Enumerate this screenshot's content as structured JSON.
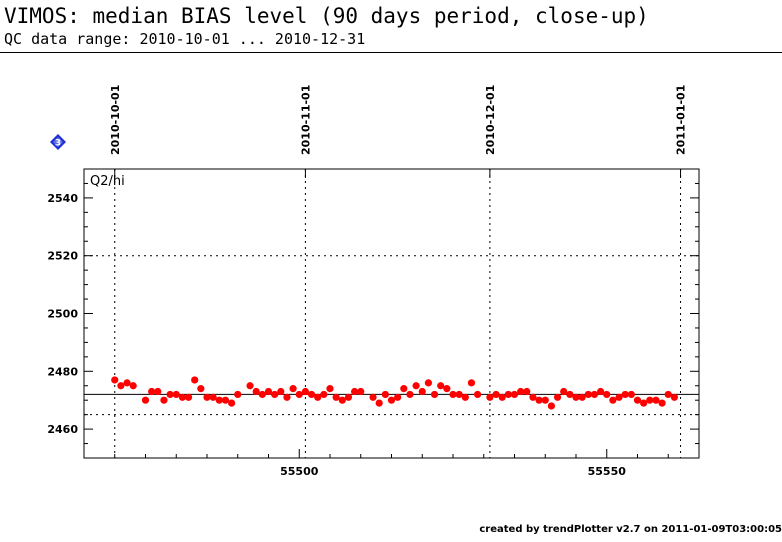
{
  "header": {
    "title": "VIMOS: median BIAS level (90 days period, close-up)",
    "subtitle": "QC data range: 2010-10-01 ... 2010-12-31"
  },
  "badge": {
    "icon": "diamond-3-icon",
    "label": "3",
    "color": "#1f2fd6"
  },
  "footer": {
    "text": "created by trendPlotter v2.7 on 2011-01-09T03:00:05"
  },
  "chart_data": {
    "type": "scatter",
    "panel_label": "Q2/hi",
    "xlim": [
      55465,
      55565
    ],
    "ylim": [
      2450,
      2550
    ],
    "x_ticks": [
      55500,
      55550
    ],
    "y_ticks": [
      2460,
      2480,
      2500,
      2520,
      2540
    ],
    "y_grid": [
      2465,
      2520
    ],
    "reference_line": 2472,
    "date_ticks": [
      {
        "label": "2010-10-01",
        "x": 55470
      },
      {
        "label": "2010-11-01",
        "x": 55501
      },
      {
        "label": "2010-12-01",
        "x": 55531
      },
      {
        "label": "2011-01-01",
        "x": 55562
      }
    ],
    "point_color": "#ff0000",
    "x": [
      55470,
      55471,
      55472,
      55473,
      55475,
      55476,
      55477,
      55478,
      55479,
      55480,
      55481,
      55482,
      55483,
      55484,
      55485,
      55486,
      55487,
      55488,
      55489,
      55490,
      55492,
      55493,
      55494,
      55495,
      55496,
      55497,
      55498,
      55499,
      55500,
      55501,
      55502,
      55503,
      55504,
      55505,
      55506,
      55507,
      55508,
      55509,
      55510,
      55512,
      55513,
      55514,
      55515,
      55516,
      55517,
      55518,
      55519,
      55520,
      55521,
      55522,
      55523,
      55524,
      55525,
      55526,
      55527,
      55528,
      55529,
      55531,
      55532,
      55533,
      55534,
      55535,
      55536,
      55537,
      55538,
      55539,
      55540,
      55541,
      55542,
      55543,
      55544,
      55545,
      55546,
      55547,
      55548,
      55549,
      55550,
      55551,
      55552,
      55553,
      55554,
      55555,
      55556,
      55557,
      55558,
      55559,
      55560,
      55561
    ],
    "y": [
      2477,
      2475,
      2476,
      2475,
      2470,
      2473,
      2473,
      2470,
      2472,
      2472,
      2471,
      2471,
      2477,
      2474,
      2471,
      2471,
      2470,
      2470,
      2469,
      2472,
      2475,
      2473,
      2472,
      2473,
      2472,
      2473,
      2471,
      2474,
      2472,
      2473,
      2472,
      2471,
      2472,
      2474,
      2471,
      2470,
      2471,
      2473,
      2473,
      2471,
      2469,
      2472,
      2470,
      2471,
      2474,
      2472,
      2475,
      2473,
      2476,
      2472,
      2475,
      2474,
      2472,
      2472,
      2471,
      2476,
      2472,
      2471,
      2472,
      2471,
      2472,
      2472,
      2473,
      2473,
      2471,
      2470,
      2470,
      2468,
      2471,
      2473,
      2472,
      2471,
      2471,
      2472,
      2472,
      2473,
      2472,
      2470,
      2471,
      2472,
      2472,
      2470,
      2469,
      2470,
      2470,
      2469,
      2472,
      2471
    ]
  }
}
